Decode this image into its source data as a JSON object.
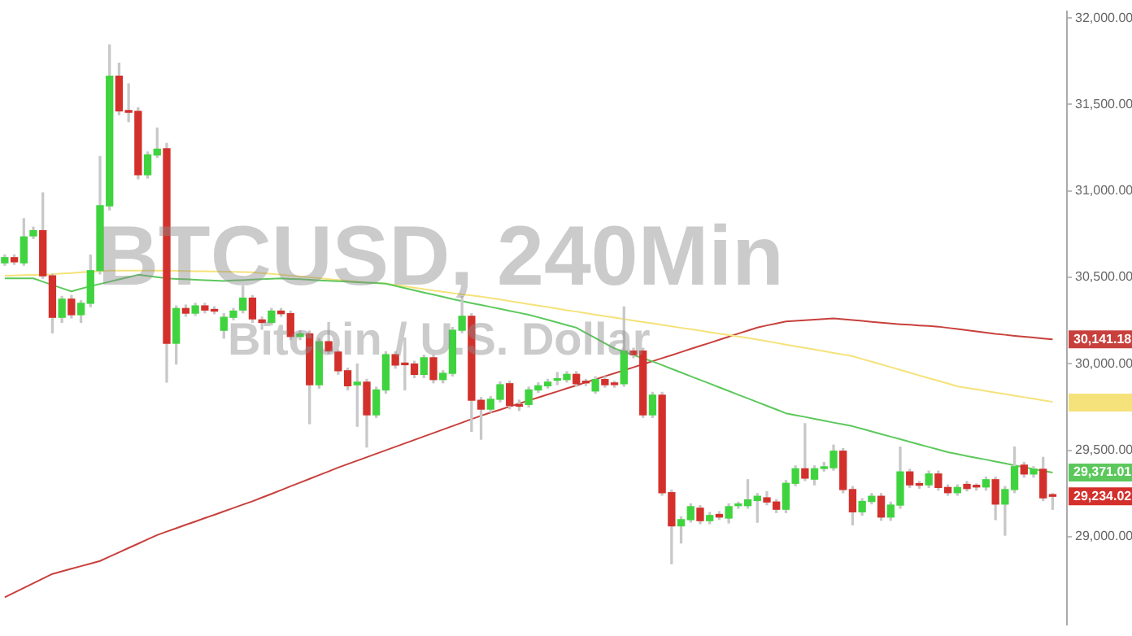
{
  "chart_data": {
    "type": "candlestick",
    "title": "BTCUSD, 240Min",
    "subtitle": "Bitcoin / U.S. Dollar",
    "categories": [
      null,
      null,
      null,
      null,
      null,
      null,
      null,
      null,
      null,
      null,
      null,
      null,
      null,
      null,
      null,
      null,
      null,
      null,
      null,
      null,
      null,
      null,
      null,
      null,
      null,
      null,
      null,
      null,
      null,
      null,
      null,
      null,
      null,
      null,
      null,
      null,
      null,
      null,
      null,
      null,
      null,
      null,
      null,
      null,
      null,
      null,
      null,
      null,
      null,
      null,
      null,
      null,
      null,
      null,
      null,
      null,
      null,
      null,
      null,
      null,
      null,
      null,
      null,
      null,
      null,
      null,
      null,
      null,
      null,
      null,
      null,
      null,
      null,
      null,
      null,
      null,
      null,
      null,
      null,
      null,
      null,
      null,
      null,
      null,
      null,
      null,
      null,
      null,
      null,
      null,
      null,
      null,
      null,
      null,
      null,
      null,
      null,
      null,
      null,
      null,
      null,
      null,
      null,
      null,
      null,
      null,
      null,
      null,
      null,
      null,
      null
    ],
    "ohlc": [
      [
        30584,
        30630,
        30570,
        30614
      ],
      [
        30614,
        30630,
        30575,
        30590
      ],
      [
        30584,
        30839,
        30570,
        30734
      ],
      [
        30740,
        30790,
        30725,
        30770
      ],
      [
        30770,
        30989,
        30495,
        30509
      ],
      [
        30509,
        30520,
        30179,
        30269
      ],
      [
        30269,
        30390,
        30240,
        30374
      ],
      [
        30374,
        30395,
        30265,
        30284
      ],
      [
        30284,
        30365,
        30240,
        30350
      ],
      [
        30350,
        30629,
        30330,
        30539
      ],
      [
        30539,
        31199,
        30520,
        30914
      ],
      [
        30914,
        31844,
        30890,
        31664
      ],
      [
        31664,
        31739,
        31440,
        31463
      ],
      [
        31460,
        31619,
        31400,
        31455
      ],
      [
        31460,
        31480,
        31070,
        31094
      ],
      [
        31094,
        31225,
        31075,
        31208
      ],
      [
        31208,
        31364,
        31195,
        31241
      ],
      [
        31244,
        31274,
        29894,
        30119
      ],
      [
        30119,
        30335,
        29999,
        30320
      ],
      [
        30320,
        30340,
        30275,
        30293
      ],
      [
        30293,
        30350,
        30280,
        30335
      ],
      [
        30335,
        30350,
        30295,
        30311
      ],
      [
        30314,
        30330,
        30290,
        30305
      ],
      [
        30194,
        30290,
        30149,
        30269
      ],
      [
        30269,
        30320,
        30255,
        30305
      ],
      [
        30311,
        30449,
        30295,
        30380
      ],
      [
        30380,
        30395,
        30240,
        30260
      ],
      [
        30254,
        30270,
        30200,
        30239
      ],
      [
        30239,
        30320,
        30225,
        30305
      ],
      [
        30305,
        30320,
        30275,
        30290
      ],
      [
        30290,
        30305,
        30140,
        30158
      ],
      [
        30158,
        30190,
        30140,
        30173
      ],
      [
        30173,
        30190,
        29654,
        29879
      ],
      [
        29879,
        30145,
        29860,
        30128
      ],
      [
        30128,
        30239,
        30060,
        30074
      ],
      [
        30068,
        30080,
        29940,
        29960
      ],
      [
        29960,
        29975,
        29850,
        29873
      ],
      [
        29879,
        29999,
        29639,
        29894
      ],
      [
        29894,
        29910,
        29519,
        29705
      ],
      [
        29705,
        29865,
        29690,
        29849
      ],
      [
        29849,
        30070,
        29830,
        30053
      ],
      [
        30053,
        30070,
        29975,
        29993
      ],
      [
        29999,
        30149,
        29849,
        29995
      ],
      [
        29999,
        30015,
        29920,
        29939
      ],
      [
        29939,
        30050,
        29920,
        30035
      ],
      [
        30035,
        30050,
        29890,
        29909
      ],
      [
        29909,
        29960,
        29890,
        29945
      ],
      [
        29945,
        30210,
        29930,
        30194
      ],
      [
        30194,
        30389,
        30180,
        30275
      ],
      [
        30275,
        30290,
        29609,
        29789
      ],
      [
        29789,
        29805,
        29564,
        29738
      ],
      [
        29738,
        29810,
        29720,
        29795
      ],
      [
        29795,
        29895,
        29780,
        29879
      ],
      [
        29885,
        29900,
        29740,
        29759
      ],
      [
        29759,
        29790,
        29730,
        29755
      ],
      [
        29765,
        29865,
        29750,
        29849
      ],
      [
        29849,
        29890,
        29835,
        29873
      ],
      [
        29873,
        29910,
        29860,
        29894
      ],
      [
        29905,
        29950,
        29880,
        29909
      ],
      [
        29909,
        29955,
        29895,
        29939
      ],
      [
        29939,
        29955,
        29870,
        29885
      ],
      [
        29894,
        29910,
        29875,
        29890
      ],
      [
        29843,
        29925,
        29830,
        29909
      ],
      [
        29909,
        29925,
        29865,
        29879
      ],
      [
        29885,
        29900,
        29865,
        29880
      ],
      [
        29885,
        30329,
        29870,
        30074
      ],
      [
        30074,
        30090,
        30035,
        30053
      ],
      [
        30074,
        30090,
        29690,
        29705
      ],
      [
        29705,
        29835,
        29690,
        29819
      ],
      [
        29819,
        29835,
        29240,
        29255
      ],
      [
        29255,
        29270,
        28844,
        29063
      ],
      [
        29063,
        29115,
        28964,
        29099
      ],
      [
        29099,
        29190,
        29085,
        29174
      ],
      [
        29165,
        29180,
        29075,
        29093
      ],
      [
        29093,
        29140,
        29075,
        29123
      ],
      [
        29129,
        29145,
        29100,
        29114
      ],
      [
        29108,
        29190,
        29080,
        29174
      ],
      [
        29180,
        29200,
        29165,
        29185
      ],
      [
        29180,
        29330,
        29165,
        29213
      ],
      [
        29210,
        29250,
        29084,
        29234
      ],
      [
        29225,
        29260,
        29185,
        29201
      ],
      [
        29201,
        29215,
        29140,
        29159
      ],
      [
        29159,
        29325,
        29140,
        29309
      ],
      [
        29309,
        29410,
        29295,
        29393
      ],
      [
        29393,
        29654,
        29325,
        29339
      ],
      [
        29333,
        29410,
        29300,
        29393
      ],
      [
        29395,
        29430,
        29380,
        29399
      ],
      [
        29399,
        29530,
        29385,
        29495
      ],
      [
        29495,
        29510,
        29255,
        29273
      ],
      [
        29273,
        29290,
        29069,
        29144
      ],
      [
        29144,
        29220,
        29125,
        29204
      ],
      [
        29204,
        29250,
        29190,
        29234
      ],
      [
        29234,
        29250,
        29095,
        29114
      ],
      [
        29114,
        29200,
        29095,
        29183
      ],
      [
        29183,
        29519,
        29165,
        29375
      ],
      [
        29375,
        29390,
        29285,
        29300
      ],
      [
        29300,
        29320,
        29280,
        29298
      ],
      [
        29300,
        29380,
        29285,
        29363
      ],
      [
        29363,
        29380,
        29270,
        29285
      ],
      [
        29285,
        29300,
        29240,
        29255
      ],
      [
        29255,
        29300,
        29240,
        29285
      ],
      [
        29303,
        29320,
        29265,
        29279
      ],
      [
        29290,
        29305,
        29270,
        29288
      ],
      [
        29288,
        29345,
        29270,
        29330
      ],
      [
        29330,
        29345,
        29099,
        29189
      ],
      [
        29189,
        29290,
        29009,
        29273
      ],
      [
        29273,
        29519,
        29255,
        29405
      ],
      [
        29414,
        29430,
        29345,
        29363
      ],
      [
        29363,
        29405,
        29345,
        29390
      ],
      [
        29390,
        29459,
        29210,
        29225
      ],
      [
        29240,
        29250,
        29159,
        29234.02
      ]
    ],
    "series": [
      {
        "type": "line",
        "color": "#5cc85c",
        "value_labels": [
          null,
          null,
          null,
          null,
          null,
          null,
          null,
          null,
          null,
          null,
          null,
          null,
          null,
          null,
          null,
          null,
          null,
          null,
          null,
          null,
          null,
          null,
          null,
          null,
          null,
          null,
          null,
          null,
          null,
          null,
          null,
          null,
          null,
          null,
          null,
          null,
          null,
          null,
          null,
          null,
          null,
          null,
          null,
          null,
          null,
          null,
          null,
          null,
          null,
          null,
          null,
          null,
          null,
          null,
          null,
          null,
          null,
          null,
          null,
          null,
          null,
          null,
          null,
          null,
          null,
          null,
          null,
          null,
          null,
          null,
          null,
          null,
          null,
          null,
          null,
          null,
          null,
          null,
          null,
          null,
          null,
          null,
          null,
          null,
          null,
          null,
          null,
          null,
          null,
          null,
          null,
          null,
          null,
          null,
          null,
          null,
          null,
          null,
          null,
          null,
          null,
          null,
          null,
          null,
          null,
          null,
          null,
          null,
          null,
          null,
          "29,371.01"
        ],
        "values": [
          30494,
          30494,
          30494,
          30494,
          30475,
          30456,
          30437,
          30419,
          30434,
          30449,
          30462,
          30475,
          30488,
          30501,
          30515,
          30508,
          30501,
          30494,
          30491,
          30489,
          30486,
          30484,
          30481,
          30479,
          30482,
          30484,
          30487,
          30489,
          30492,
          30494,
          30491,
          30489,
          30486,
          30483,
          30480,
          30478,
          30475,
          30472,
          30470,
          30467,
          30464,
          30451,
          30438,
          30425,
          30412,
          30400,
          30387,
          30374,
          30363,
          30351,
          30340,
          30329,
          30318,
          30306,
          30295,
          30284,
          30269,
          30254,
          30239,
          30224,
          30209,
          30179,
          30149,
          30119,
          30089,
          30070,
          30051,
          30032,
          30014,
          29993,
          29971,
          29950,
          29928,
          29907,
          29886,
          29864,
          29843,
          29821,
          29800,
          29779,
          29757,
          29736,
          29714,
          29703,
          29693,
          29682,
          29671,
          29660,
          29650,
          29639,
          29624,
          29609,
          29594,
          29579,
          29564,
          29549,
          29534,
          29519,
          29504,
          29489,
          29478,
          29467,
          29456,
          29446,
          29435,
          29424,
          29413,
          29402,
          29391,
          29381,
          29371.01
        ]
      },
      {
        "type": "line",
        "color": "#f5e27a",
        "values": [
          30509,
          30511,
          30513,
          30514,
          30516,
          30518,
          30522,
          30525,
          30529,
          30532,
          30536,
          30539,
          30539,
          30539,
          30539,
          30539,
          30539,
          30539,
          30538,
          30537,
          30536,
          30535,
          30534,
          30533,
          30532,
          30531,
          30530,
          30525,
          30520,
          30515,
          30510,
          30505,
          30500,
          30495,
          30490,
          30485,
          30480,
          30475,
          30470,
          30467,
          30464,
          30456,
          30448,
          30440,
          30432,
          30424,
          30417,
          30409,
          30401,
          30395,
          30389,
          30380,
          30372,
          30363,
          30354,
          30345,
          30337,
          30328,
          30319,
          30310,
          30302,
          30293,
          30284,
          30276,
          30267,
          30259,
          30250,
          30242,
          30234,
          30225,
          30217,
          30208,
          30200,
          30192,
          30183,
          30175,
          30166,
          30158,
          30150,
          30140,
          30131,
          30121,
          30111,
          30102,
          30092,
          30083,
          30073,
          30063,
          30054,
          30044,
          30028,
          30012,
          29997,
          29981,
          29965,
          29949,
          29933,
          29917,
          29902,
          29886,
          29870,
          29861,
          29852,
          29843,
          29834,
          29825,
          29816,
          29807,
          29798,
          29789,
          29780
        ]
      },
      {
        "type": "line",
        "color": "#c8403c",
        "value_labels": [
          null,
          null,
          null,
          null,
          null,
          null,
          null,
          null,
          null,
          null,
          null,
          null,
          null,
          null,
          null,
          null,
          null,
          null,
          null,
          null,
          null,
          null,
          null,
          null,
          null,
          null,
          null,
          null,
          null,
          null,
          null,
          null,
          null,
          null,
          null,
          null,
          null,
          null,
          null,
          null,
          null,
          null,
          null,
          null,
          null,
          null,
          null,
          null,
          null,
          null,
          null,
          null,
          null,
          null,
          null,
          null,
          null,
          null,
          null,
          null,
          null,
          null,
          null,
          null,
          null,
          null,
          null,
          null,
          null,
          null,
          null,
          null,
          null,
          null,
          null,
          null,
          null,
          null,
          null,
          null,
          null,
          null,
          null,
          null,
          null,
          null,
          null,
          null,
          null,
          null,
          null,
          null,
          null,
          null,
          null,
          null,
          null,
          null,
          null,
          null,
          null,
          null,
          null,
          null,
          null,
          null,
          null,
          null,
          null,
          null,
          "30,141.18"
        ],
        "values": [
          28650,
          28677,
          28704,
          28731,
          28758,
          28785,
          28800,
          28815,
          28830,
          28845,
          28860,
          28885,
          28910,
          28935,
          28960,
          28985,
          29010,
          29030,
          29049,
          29069,
          29088,
          29108,
          29127,
          29147,
          29166,
          29186,
          29205,
          29227,
          29248,
          29270,
          29292,
          29313,
          29335,
          29357,
          29378,
          29400,
          29420,
          29440,
          29460,
          29480,
          29500,
          29520,
          29540,
          29560,
          29580,
          29600,
          29620,
          29640,
          29660,
          29680,
          29700,
          29718,
          29735,
          29753,
          29770,
          29788,
          29805,
          29823,
          29840,
          29858,
          29875,
          29893,
          29910,
          29928,
          29945,
          29963,
          29980,
          29998,
          30015,
          30033,
          30050,
          30068,
          30086,
          30104,
          30121,
          30139,
          30157,
          30175,
          30192,
          30210,
          30222,
          30233,
          30245,
          30249,
          30252,
          30256,
          30259,
          30263,
          30258,
          30253,
          30248,
          30243,
          30238,
          30233,
          30229,
          30226,
          30222,
          30219,
          30215,
          30208,
          30201,
          30194,
          30187,
          30180,
          30173,
          30168,
          30162,
          30157,
          30152,
          30146,
          30141.18
        ]
      }
    ],
    "ylim": [
      28490,
      32040
    ],
    "yticks": [
      {
        "value": 29000,
        "label": "29,000.00"
      },
      {
        "value": 29500,
        "label": "29,500.00"
      },
      {
        "value": 30000,
        "label": "30,000.00"
      },
      {
        "value": 30500,
        "label": "30,500.00"
      },
      {
        "value": 31000,
        "label": "31,000.00"
      },
      {
        "value": 31500,
        "label": "31,500.00"
      },
      {
        "value": 32000,
        "label": "32,000.00"
      }
    ],
    "value_labels": [
      null,
      null,
      null,
      null,
      null,
      null,
      null,
      null,
      null,
      null,
      null,
      null,
      null,
      null,
      null,
      null,
      null,
      null,
      null,
      null,
      null,
      null,
      null,
      null,
      null,
      null,
      null,
      null,
      null,
      null,
      null,
      null,
      null,
      null,
      null,
      null,
      null,
      null,
      null,
      null,
      null,
      null,
      null,
      null,
      null,
      null,
      null,
      null,
      null,
      null,
      null,
      null,
      null,
      null,
      null,
      null,
      null,
      null,
      null,
      null,
      null,
      null,
      null,
      null,
      null,
      null,
      null,
      null,
      null,
      null,
      null,
      null,
      null,
      null,
      null,
      null,
      null,
      null,
      null,
      null,
      null,
      null,
      null,
      null,
      null,
      null,
      null,
      null,
      null,
      null,
      null,
      null,
      null,
      null,
      null,
      null,
      null,
      null,
      null,
      null,
      null,
      null,
      null,
      null,
      null,
      null,
      null,
      null,
      null,
      null,
      "29,234.02"
    ]
  }
}
